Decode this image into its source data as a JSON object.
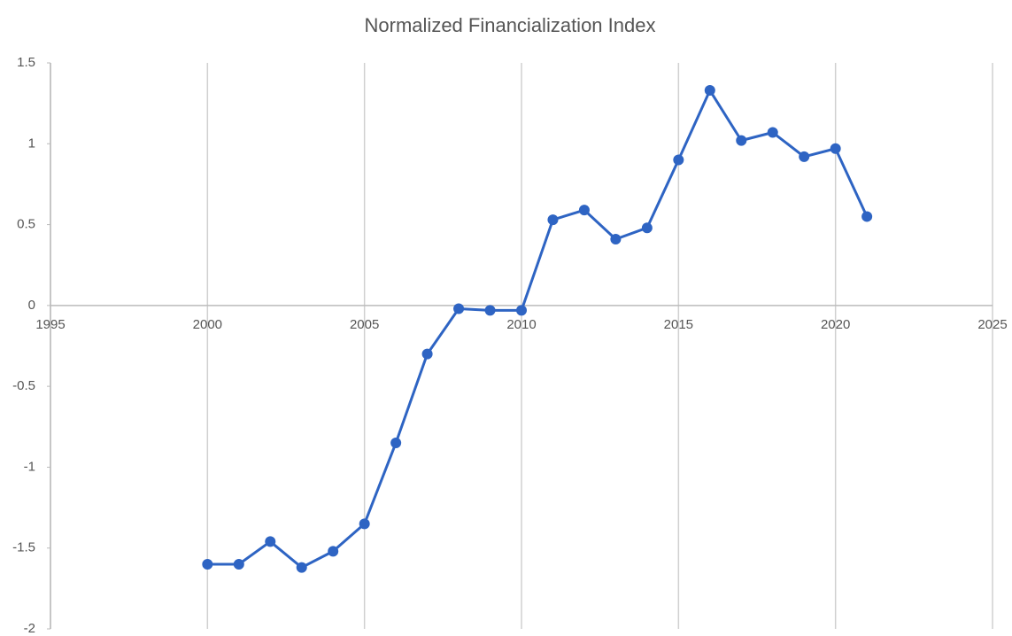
{
  "chart_data": {
    "type": "line",
    "title": "Normalized Financialization Index",
    "x": [
      2000,
      2001,
      2002,
      2003,
      2004,
      2005,
      2006,
      2007,
      2008,
      2009,
      2010,
      2011,
      2012,
      2013,
      2014,
      2015,
      2016,
      2017,
      2018,
      2019,
      2020,
      2021
    ],
    "series": [
      {
        "name": "Normalized Financialization Index",
        "color": "#2e64c3",
        "values": [
          -1.6,
          -1.6,
          -1.46,
          -1.62,
          -1.52,
          -1.35,
          -0.85,
          -0.3,
          -0.02,
          -0.03,
          -0.03,
          0.53,
          0.59,
          0.41,
          0.48,
          0.9,
          1.33,
          1.02,
          1.07,
          0.92,
          0.97,
          0.55
        ]
      }
    ],
    "xlim": [
      1995,
      2025
    ],
    "xticks": [
      1995,
      2000,
      2005,
      2010,
      2015,
      2020,
      2025
    ],
    "ylim": [
      -2,
      1.5
    ],
    "yticks": [
      -2,
      -1.5,
      -1,
      -0.5,
      0,
      0.5,
      1,
      1.5
    ],
    "grid": "x"
  }
}
